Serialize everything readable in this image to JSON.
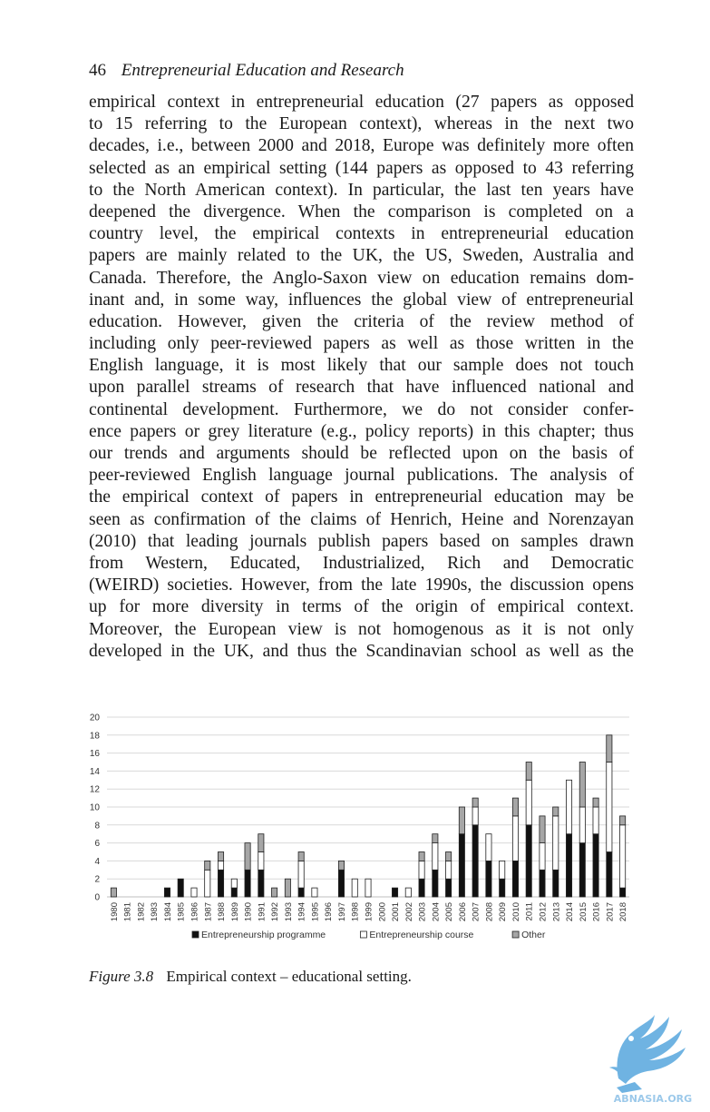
{
  "running_head": {
    "page_number": "46",
    "title": "Entrepreneurial Education and Research"
  },
  "body_lines": [
    "empirical context in entrepreneurial education (27 papers as opposed",
    "to 15 referring to the European context), whereas in the next two",
    "decades, i.e., between 2000 and 2018, Europe was definitely more often",
    "selected as an empirical setting (144 papers as opposed to 43 referring",
    "to the North American context). In particular, the last ten years have",
    "deepened the divergence. When the comparison is completed on a",
    "country level, the empirical contexts in entrepreneurial education",
    "papers are mainly related to the UK, the US, Sweden, Australia and",
    "Canada. Therefore, the Anglo-Saxon view on education remains dom-",
    "inant and, in some way, influences the global view of entrepreneurial",
    "education. However, given the criteria of the review method of",
    "including only peer-reviewed papers as well as those written in the",
    "English language, it is most likely that our sample does not touch",
    "upon parallel streams of research that have influenced national and",
    "continental development. Furthermore, we do not consider confer-",
    "ence papers or grey literature (e.g., policy reports) in this chapter; thus",
    "our trends and arguments should be reflected upon on the basis of",
    "peer-reviewed English language journal publications. The analysis of",
    "the empirical context of papers in entrepreneurial education may be",
    "seen as confirmation of the claims of Henrich, Heine and Norenzayan",
    "(2010) that leading journals publish papers based on samples drawn",
    "from Western, Educated, Industrialized, Rich and Democratic",
    "(WEIRD) societies. However, from the late 1990s, the discussion opens",
    "up for more diversity in terms of the origin of empirical context.",
    "Moreover, the European view is not homogenous as it is not only",
    "developed in the UK, and thus the Scandinavian school as well as the"
  ],
  "caption": {
    "label": "Figure 3.8",
    "text": "Empirical context – educational setting."
  },
  "chart_data": {
    "type": "bar",
    "stacked": true,
    "categories": [
      "1980",
      "1981",
      "1982",
      "1983",
      "1984",
      "1985",
      "1986",
      "1987",
      "1988",
      "1989",
      "1990",
      "1991",
      "1992",
      "1993",
      "1994",
      "1995",
      "1996",
      "1997",
      "1998",
      "1999",
      "2000",
      "2001",
      "2002",
      "2003",
      "2004",
      "2005",
      "2006",
      "2007",
      "2008",
      "2009",
      "2010",
      "2011",
      "2012",
      "2013",
      "2014",
      "2015",
      "2016",
      "2017",
      "2018"
    ],
    "series": [
      {
        "name": "Entrepreneurship programme",
        "color": "#111111",
        "values": [
          0,
          0,
          0,
          0,
          1,
          2,
          0,
          0,
          3,
          1,
          3,
          3,
          0,
          0,
          1,
          0,
          0,
          3,
          0,
          0,
          0,
          1,
          0,
          2,
          3,
          2,
          7,
          8,
          4,
          2,
          4,
          8,
          3,
          3,
          7,
          6,
          7,
          5,
          1
        ]
      },
      {
        "name": "Entrepreneurship course",
        "color": "#ffffff",
        "values": [
          0,
          0,
          0,
          0,
          0,
          0,
          1,
          3,
          1,
          1,
          0,
          2,
          0,
          0,
          3,
          1,
          0,
          0,
          2,
          2,
          0,
          0,
          1,
          2,
          3,
          2,
          0,
          2,
          3,
          2,
          5,
          5,
          3,
          6,
          6,
          4,
          3,
          10,
          7
        ]
      },
      {
        "name": "Other",
        "color": "#a6a6a6",
        "values": [
          1,
          0,
          0,
          0,
          0,
          0,
          0,
          1,
          1,
          0,
          3,
          2,
          1,
          2,
          1,
          0,
          0,
          1,
          0,
          0,
          0,
          0,
          0,
          1,
          1,
          1,
          3,
          1,
          0,
          0,
          2,
          2,
          3,
          1,
          0,
          5,
          1,
          3,
          1
        ]
      }
    ],
    "ylim": [
      0,
      20
    ],
    "yticks": [
      0,
      2,
      4,
      6,
      8,
      10,
      12,
      14,
      16,
      18,
      20
    ],
    "grid": true,
    "legend_position": "bottom"
  }
}
